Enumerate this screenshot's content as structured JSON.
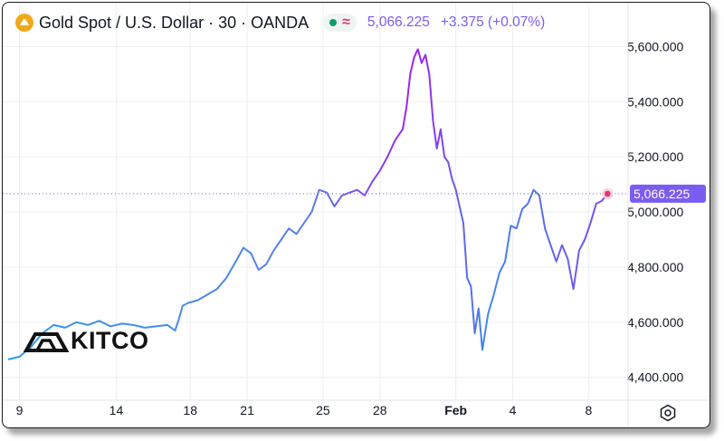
{
  "header": {
    "title": "Gold Spot / U.S. Dollar · 30 · OANDA",
    "price": "5,066.225",
    "change": "+3.375 (+0.07%)",
    "symbol_icon": "gold-bars-icon",
    "status_icons": [
      "market-open-dot-icon",
      "realtime-wave-icon"
    ]
  },
  "watermark": {
    "text": "KITCO",
    "icon": "kitco-gold-bar-icon"
  },
  "colors": {
    "line_start": "#2e9be8",
    "line_peak": "#a020f0",
    "line_end": "#7a4df0",
    "price_tag": "#7b5cf0",
    "grid": "#eceff3",
    "text": "#131722"
  },
  "chart_data": {
    "type": "line",
    "title": "Gold Spot / U.S. Dollar · 30 · OANDA",
    "ylim": [
      4340,
      5680
    ],
    "y_ticks": [
      4400,
      4600,
      4800,
      5000,
      5200,
      5400,
      5600
    ],
    "y_tick_labels": [
      "4,400.000",
      "4,600.000",
      "4,800.000",
      "5,000.000",
      "5,200.000",
      "5,400.000",
      "5,600.000"
    ],
    "x_ticks": [
      {
        "label": "9",
        "x": 0.6,
        "bold": false
      },
      {
        "label": "14",
        "x": 5.7,
        "bold": false
      },
      {
        "label": "18",
        "x": 9.6,
        "bold": false
      },
      {
        "label": "21",
        "x": 12.6,
        "bold": false
      },
      {
        "label": "25",
        "x": 16.6,
        "bold": false
      },
      {
        "label": "28",
        "x": 19.6,
        "bold": false
      },
      {
        "label": "Feb",
        "x": 23.6,
        "bold": true
      },
      {
        "label": "4",
        "x": 26.6,
        "bold": false
      },
      {
        "label": "8",
        "x": 30.6,
        "bold": false
      }
    ],
    "xlim": [
      0,
      32.3
    ],
    "current_price": 5066.225,
    "current_price_label": "5,066.225",
    "series": [
      {
        "x": [
          0,
          0.6,
          1.2,
          1.8,
          2.4,
          3.0,
          3.6,
          4.2,
          4.8,
          5.4,
          6.0,
          6.6,
          7.2,
          7.8,
          8.4,
          8.8,
          9.0,
          9.2,
          9.5,
          10.0,
          10.5,
          11.0,
          11.5,
          12.0,
          12.4,
          12.8,
          13.2,
          13.6,
          14.0,
          14.4,
          14.8,
          15.2,
          15.6,
          16.0,
          16.4,
          16.8,
          17.2,
          17.6,
          18.0,
          18.4,
          18.8,
          19.2,
          19.6,
          20.0,
          20.4,
          20.8,
          21.0,
          21.2,
          21.4,
          21.6,
          21.8,
          22.0,
          22.2,
          22.4,
          22.6,
          22.8,
          23.0,
          23.2,
          23.4,
          23.6,
          23.8,
          24.0,
          24.2,
          24.4,
          24.6,
          24.8,
          25.0,
          25.3,
          25.6,
          25.9,
          26.2,
          26.5,
          26.8,
          27.1,
          27.4,
          27.7,
          28.0,
          28.3,
          28.6,
          28.9,
          29.2,
          29.5,
          29.8,
          30.1,
          30.4,
          30.7,
          31.0,
          31.3,
          31.6
        ],
        "y": [
          4465,
          4475,
          4510,
          4560,
          4590,
          4580,
          4600,
          4590,
          4605,
          4585,
          4595,
          4590,
          4580,
          4585,
          4590,
          4570,
          4610,
          4660,
          4670,
          4680,
          4700,
          4720,
          4760,
          4820,
          4870,
          4850,
          4790,
          4810,
          4860,
          4900,
          4940,
          4920,
          4960,
          5000,
          5080,
          5070,
          5020,
          5060,
          5070,
          5080,
          5060,
          5110,
          5150,
          5200,
          5260,
          5300,
          5380,
          5500,
          5560,
          5590,
          5540,
          5570,
          5500,
          5330,
          5230,
          5300,
          5200,
          5180,
          5120,
          5080,
          5020,
          4960,
          4760,
          4730,
          4560,
          4650,
          4500,
          4630,
          4700,
          4780,
          4820,
          4950,
          4940,
          5010,
          5030,
          5080,
          5060,
          4940,
          4880,
          4820,
          4880,
          4830,
          4720,
          4860,
          4900,
          4960,
          5030,
          5040,
          5066
        ]
      }
    ]
  }
}
